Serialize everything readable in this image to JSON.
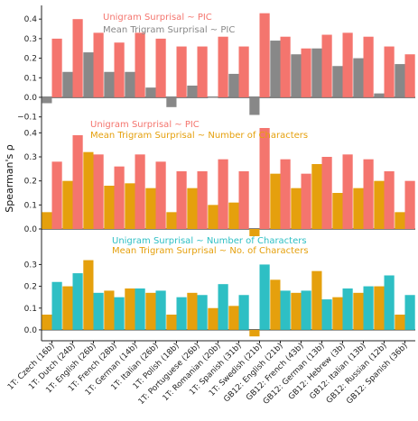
{
  "chart_data": {
    "type": "bar",
    "ylabel": "Spearman's ρ",
    "categories": [
      "1T: Czech (16b)",
      "1T: Dutch (24b)",
      "1T: English (26b)",
      "1T: French (28b)",
      "1T: German (14b)",
      "1T: Italian (26b)",
      "1T: Polish (18b)",
      "1T: Portuguese (26b)",
      "1T: Romanian (20b)",
      "1T: Spanish (31b)",
      "1T: Swedish (21b)",
      "GB12: English (21b)",
      "GB12: French (43b)",
      "GB12: German (13b)",
      "GB12: Hebrew (3b)",
      "GB12: Italian (13b)",
      "GB12: Russian (12b)",
      "GB12: Spanish (36b)"
    ],
    "panels": [
      {
        "ylim": [
          -0.12,
          0.47
        ],
        "yticks": [
          -0.1,
          0.0,
          0.1,
          0.2,
          0.3,
          0.4
        ],
        "ytick_labels": [
          "−0.1",
          "0.0",
          "0.1",
          "0.2",
          "0.3",
          "0.4"
        ],
        "series": [
          {
            "name": "Mean Trigram Surprisal ~ PIC",
            "color": "#888888",
            "values": [
              -0.03,
              0.13,
              0.23,
              0.13,
              0.13,
              0.05,
              -0.05,
              0.06,
              0.0,
              0.12,
              -0.09,
              0.29,
              0.22,
              0.25,
              0.16,
              0.2,
              0.02,
              0.17
            ]
          },
          {
            "name": "Unigram Surprisal ~ PIC",
            "color": "#F4756E",
            "values": [
              0.3,
              0.4,
              0.33,
              0.28,
              0.33,
              0.3,
              0.26,
              0.26,
              0.31,
              0.26,
              0.43,
              0.31,
              0.25,
              0.32,
              0.33,
              0.31,
              0.26,
              0.22
            ]
          }
        ],
        "legend": [
          "Unigram Surprisal ~ PIC",
          "Mean Trigram Surprisal ~ PIC"
        ]
      },
      {
        "ylim": [
          -0.03,
          0.45
        ],
        "yticks": [
          0.0,
          0.1,
          0.2,
          0.3,
          0.4
        ],
        "ytick_labels": [
          "0.0",
          "0.1",
          "0.2",
          "0.3",
          "0.4"
        ],
        "series": [
          {
            "name": "Mean Trigram Surprisal ~ Number of Characters",
            "color": "#E5A00D",
            "values": [
              0.07,
              0.2,
              0.32,
              0.18,
              0.19,
              0.17,
              0.07,
              0.17,
              0.1,
              0.11,
              -0.03,
              0.23,
              0.17,
              0.27,
              0.15,
              0.17,
              0.2,
              0.07
            ]
          },
          {
            "name": "Unigram Surprisal ~ PIC",
            "color": "#F4756E",
            "values": [
              0.28,
              0.39,
              0.31,
              0.26,
              0.31,
              0.28,
              0.24,
              0.24,
              0.29,
              0.24,
              0.42,
              0.29,
              0.23,
              0.3,
              0.31,
              0.29,
              0.24,
              0.2
            ]
          }
        ],
        "legend": [
          "Unigram Surprisal ~ PIC",
          "Mean Trigram Surprisal ~ Number of Characters"
        ]
      },
      {
        "ylim": [
          -0.05,
          0.43
        ],
        "yticks": [
          0.0,
          0.1,
          0.2,
          0.3
        ],
        "ytick_labels": [
          "0.0",
          "0.1",
          "0.2",
          "0.3"
        ],
        "series": [
          {
            "name": "Mean Trigram Surprisal ~ No. of Characters",
            "color": "#E5A00D",
            "values": [
              0.07,
              0.2,
              0.32,
              0.18,
              0.19,
              0.17,
              0.07,
              0.17,
              0.1,
              0.11,
              -0.03,
              0.23,
              0.17,
              0.27,
              0.15,
              0.17,
              0.2,
              0.07
            ]
          },
          {
            "name": "Unigram Surprisal ~ Number of Characters",
            "color": "#2EBFC4",
            "values": [
              0.22,
              0.26,
              0.17,
              0.15,
              0.19,
              0.18,
              0.15,
              0.16,
              0.21,
              0.16,
              0.3,
              0.18,
              0.18,
              0.14,
              0.19,
              0.2,
              0.25,
              0.16
            ]
          }
        ],
        "legend": [
          "Unigram Surprisal ~ Number of Characters",
          "Mean Trigram Surprisal ~ No. of Characters"
        ]
      }
    ]
  }
}
